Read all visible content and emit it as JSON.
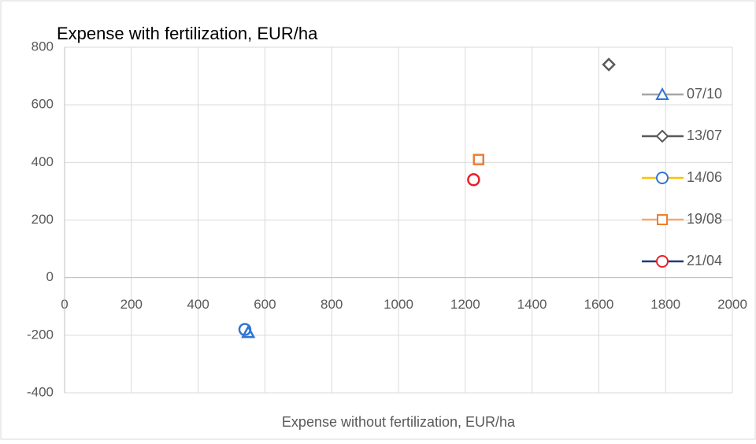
{
  "chart_data": {
    "type": "scatter",
    "title": "Expense with fertilization, EUR/ha",
    "x_label": "Expense without fertilization, EUR/ha",
    "xlim": [
      0,
      2000
    ],
    "xticks": [
      0,
      200,
      400,
      600,
      800,
      1000,
      1200,
      1400,
      1600,
      1800,
      2000
    ],
    "ylim": [
      -400,
      800
    ],
    "yticks": [
      -400,
      -200,
      0,
      200,
      400,
      600,
      800
    ],
    "grid": true,
    "legend": "right",
    "series": [
      {
        "name": "07/10",
        "color": "#2e75d6",
        "line_color": "#a5a5a5",
        "marker": "triangle",
        "x": [
          550
        ],
        "values": [
          -190
        ]
      },
      {
        "name": "13/07",
        "color": "#595959",
        "line_color": "#595959",
        "marker": "diamond",
        "x": [
          1630
        ],
        "values": [
          740
        ]
      },
      {
        "name": "14/06",
        "color": "#2e75d6",
        "line_color": "#ffc000",
        "marker": "circle",
        "x": [
          540
        ],
        "values": [
          -180
        ]
      },
      {
        "name": "19/08",
        "color": "#ed7d31",
        "line_color": "#f4a870",
        "marker": "square",
        "x": [
          1240
        ],
        "values": [
          410
        ]
      },
      {
        "name": "21/04",
        "color": "#e8202a",
        "line_color": "#1f3a78",
        "marker": "circle",
        "x": [
          1225
        ],
        "values": [
          340
        ]
      }
    ]
  }
}
